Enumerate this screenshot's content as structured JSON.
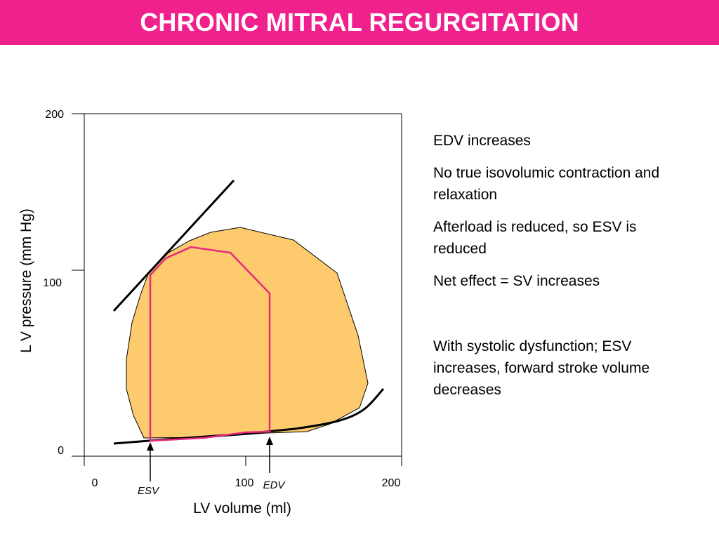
{
  "title": "CHRONIC MITRAL REGURGITATION",
  "colors": {
    "title_bar": "#F0208C",
    "title_text": "#FFFFFF",
    "normal_loop_fill": "#FDCB6E",
    "regurg_loop_stroke": "#E8287A",
    "line": "#000000"
  },
  "diagram": {
    "y_axis_title": "L V  pressure (mm Hg)",
    "x_axis_title": "LV volume (ml)",
    "y_ticks": [
      "200",
      "100",
      "0"
    ],
    "x_ticks": [
      "0",
      "100",
      "200"
    ],
    "markers": {
      "esv": "ESV",
      "edv": "EDV"
    }
  },
  "notes": [
    "EDV increases",
    "No true isovolumic contraction and relaxation",
    "Afterload is reduced, so ESV is reduced",
    "Net effect  = SV increases",
    "With systolic dysfunction; ESV increases, forward stroke volume decreases"
  ]
}
